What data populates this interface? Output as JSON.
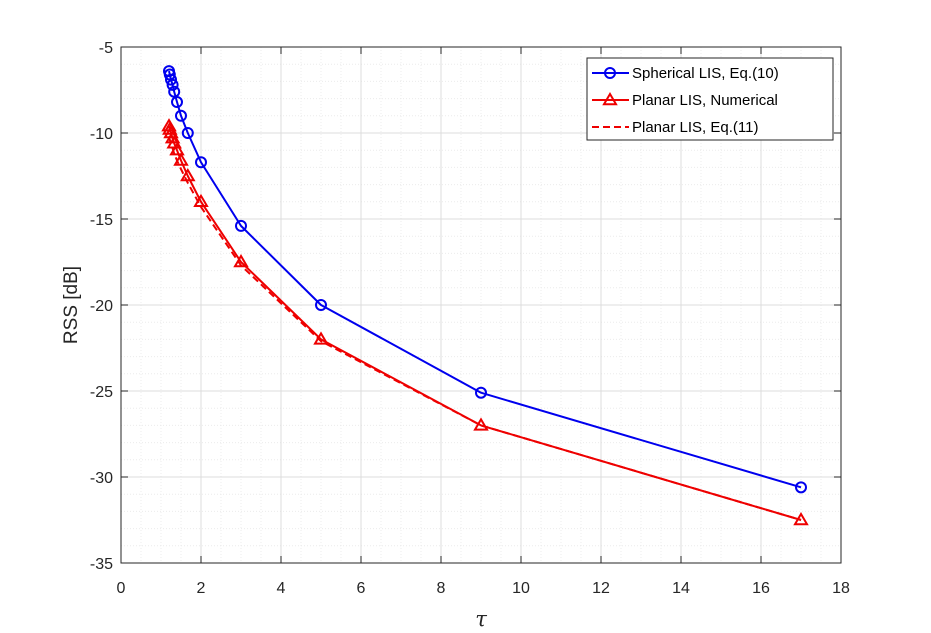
{
  "chart_data": {
    "type": "line",
    "xlabel": "τ",
    "ylabel": "RSS [dB]",
    "xlim": [
      0,
      18
    ],
    "ylim": [
      -35,
      -5
    ],
    "xticks": [
      0,
      2,
      4,
      6,
      8,
      10,
      12,
      14,
      16,
      18
    ],
    "yticks": [
      -5,
      -10,
      -15,
      -20,
      -25,
      -30,
      -35
    ],
    "grid": true,
    "minor_grid": true,
    "legend_position": "top-right",
    "series": [
      {
        "name": "Spherical LIS, Eq.(10)",
        "color": "#0000ee",
        "style": "solid",
        "marker": "circle",
        "x": [
          1.2,
          1.22,
          1.25,
          1.29,
          1.33,
          1.4,
          1.5,
          1.67,
          2,
          3,
          5,
          9,
          17
        ],
        "y": [
          -6.4,
          -6.6,
          -6.9,
          -7.2,
          -7.6,
          -8.2,
          -9.0,
          -10.0,
          -11.7,
          -15.4,
          -20.0,
          -25.1,
          -30.6
        ]
      },
      {
        "name": "Planar LIS, Numerical",
        "color": "#ee0000",
        "style": "solid",
        "marker": "triangle",
        "x": [
          1.2,
          1.22,
          1.25,
          1.29,
          1.33,
          1.4,
          1.5,
          1.67,
          2,
          3,
          5,
          9,
          17
        ],
        "y": [
          -9.6,
          -9.8,
          -10.0,
          -10.3,
          -10.6,
          -11.0,
          -11.6,
          -12.5,
          -14.0,
          -17.5,
          -22.0,
          -27.0,
          -32.5
        ]
      },
      {
        "name": "Planar LIS, Eq.(11)",
        "color": "#ee0000",
        "style": "dashed",
        "marker": "none",
        "x": [
          1.2,
          1.22,
          1.25,
          1.29,
          1.33,
          1.4,
          1.5,
          1.67,
          2,
          3,
          5,
          9,
          17
        ],
        "y": [
          -10.2,
          -10.4,
          -10.6,
          -10.9,
          -11.2,
          -11.6,
          -12.1,
          -12.9,
          -14.3,
          -17.7,
          -22.1,
          -27.0,
          -32.5
        ]
      }
    ]
  }
}
